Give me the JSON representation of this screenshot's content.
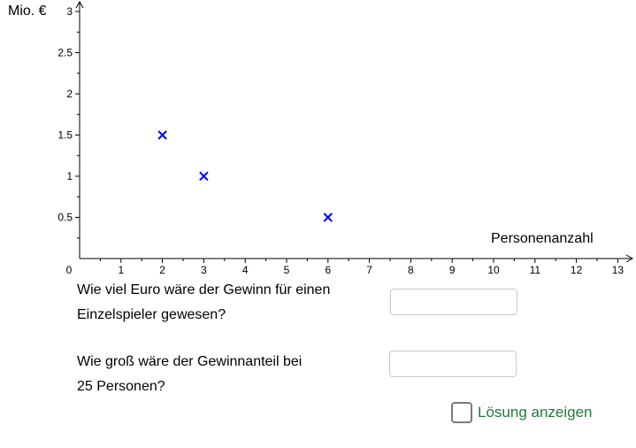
{
  "chart_data": {
    "type": "scatter",
    "y_unit_label": "Mio. €",
    "xlabel": "Personenanzahl",
    "xlim": [
      0,
      13
    ],
    "ylim": [
      0,
      3
    ],
    "x_ticks": [
      1,
      2,
      3,
      4,
      5,
      6,
      7,
      8,
      9,
      10,
      11,
      12,
      13
    ],
    "x_tick_labels": [
      "1",
      "2",
      "3",
      "4",
      "5",
      "6",
      "7",
      "8",
      "9",
      "10",
      "11",
      "12",
      "13"
    ],
    "y_ticks": [
      0.5,
      1,
      1.5,
      2,
      2.5,
      3
    ],
    "y_tick_labels": [
      "0.5",
      "1",
      "1.5",
      "2",
      "2.5",
      "3"
    ],
    "origin_label": "0",
    "grid": false,
    "marker": "x",
    "marker_color": "#0000ff",
    "points": [
      {
        "x": 2,
        "y": 1.5
      },
      {
        "x": 3,
        "y": 1
      },
      {
        "x": 6,
        "y": 0.5
      }
    ]
  },
  "questions": [
    {
      "text_line1": "Wie viel Euro wäre der Gewinn für einen",
      "text_line2": "Einzelspieler gewesen?",
      "input_value": ""
    },
    {
      "text_line1": "Wie groß wäre der Gewinnanteil bei",
      "text_line2": "25 Personen?",
      "input_value": ""
    }
  ],
  "solution_toggle": {
    "label": "Lösung anzeigen",
    "checked": false,
    "label_color": "#1f7a3c"
  }
}
